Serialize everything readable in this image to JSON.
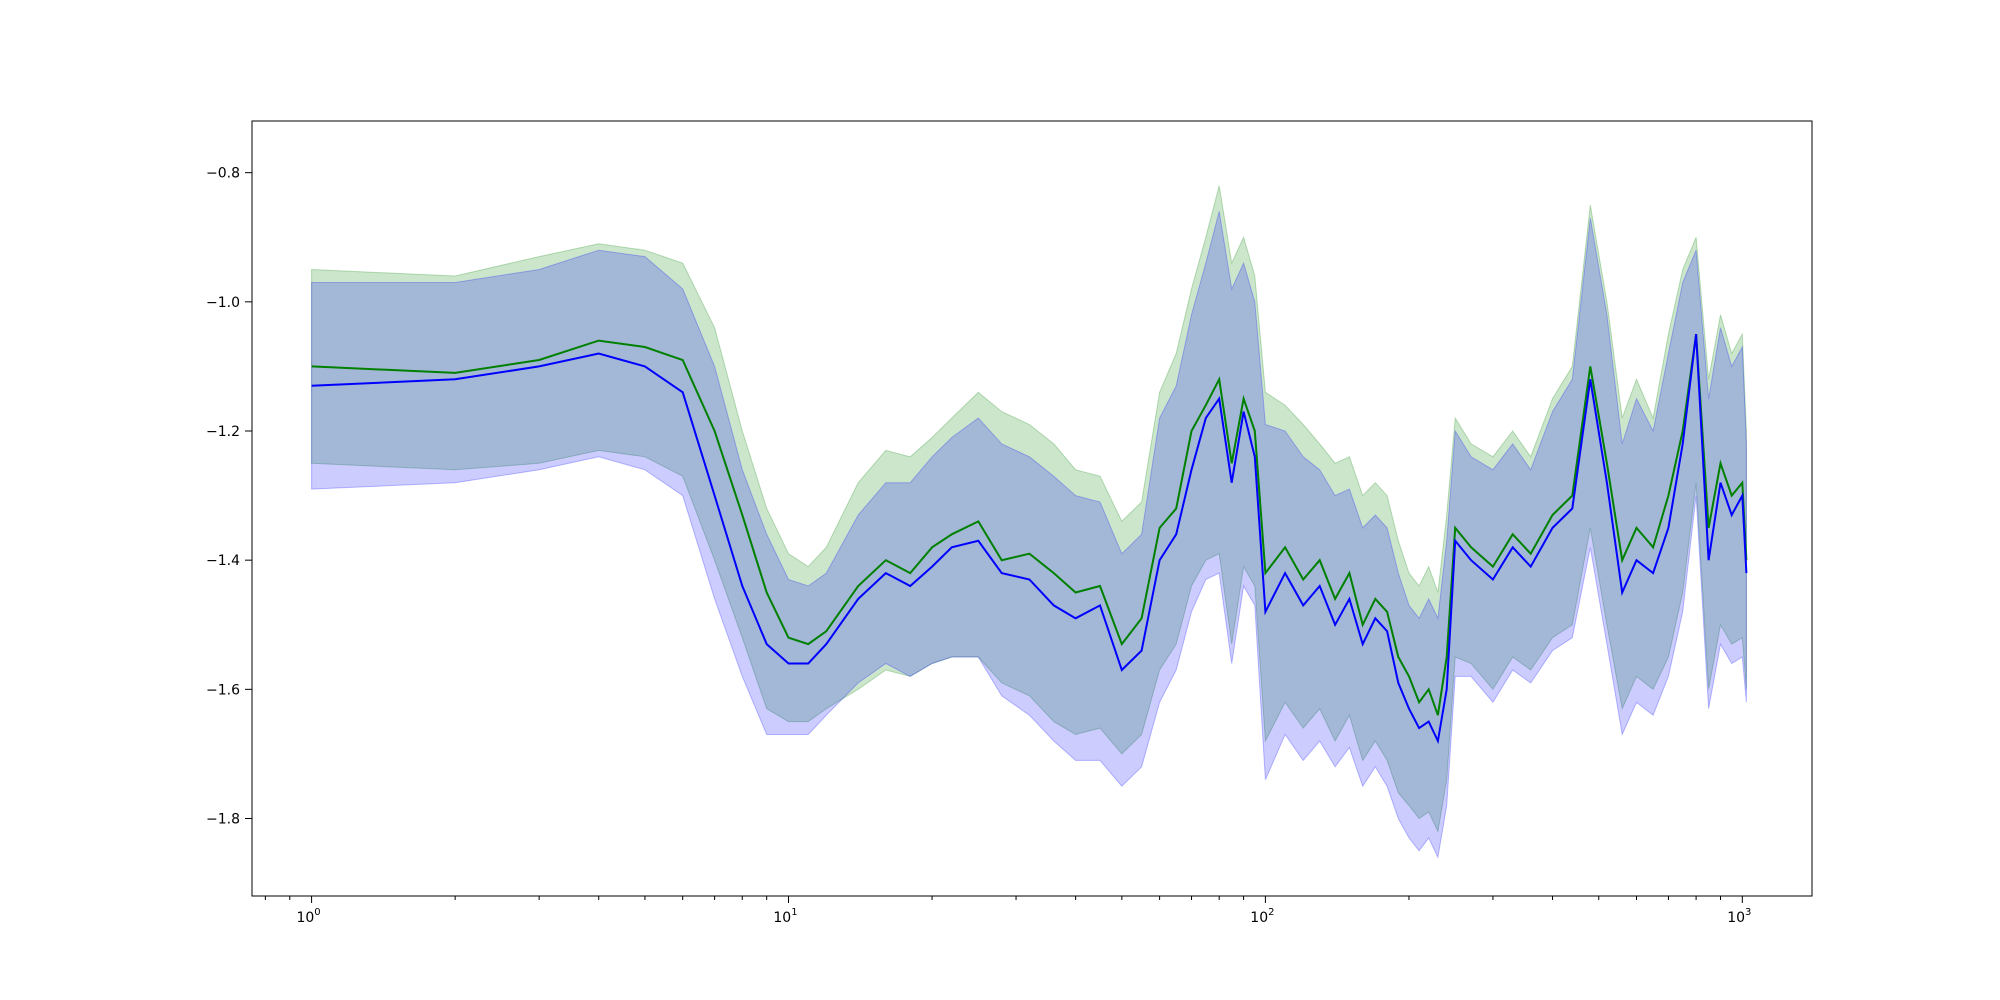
{
  "chart_data": {
    "type": "line",
    "title": "",
    "xlabel": "",
    "ylabel": "",
    "xscale": "log",
    "xlim": [
      0.75,
      1400
    ],
    "ylim": [
      -1.92,
      -0.72
    ],
    "grid": false,
    "legend": "none",
    "x_ticks": [
      {
        "value": 1,
        "base": "10",
        "exp": "0"
      },
      {
        "value": 10,
        "base": "10",
        "exp": "1"
      },
      {
        "value": 100,
        "base": "10",
        "exp": "2"
      },
      {
        "value": 1000,
        "base": "10",
        "exp": "3"
      }
    ],
    "y_ticks": [
      {
        "value": -0.8,
        "label": "−0.8"
      },
      {
        "value": -1.0,
        "label": "−1.0"
      },
      {
        "value": -1.2,
        "label": "−1.2"
      },
      {
        "value": -1.4,
        "label": "−1.4"
      },
      {
        "value": -1.6,
        "label": "−1.6"
      },
      {
        "value": -1.8,
        "label": "−1.8"
      }
    ],
    "series": [
      {
        "color": "#008000",
        "band_color": "#008000",
        "band_opacity": 0.2,
        "x": [
          1,
          2,
          3,
          4,
          5,
          6,
          7,
          8,
          9,
          10,
          11,
          12,
          14,
          16,
          18,
          20,
          22,
          25,
          28,
          32,
          36,
          40,
          45,
          50,
          55,
          60,
          65,
          70,
          75,
          80,
          85,
          90,
          95,
          100,
          110,
          120,
          130,
          140,
          150,
          160,
          170,
          180,
          190,
          200,
          210,
          220,
          230,
          240,
          250,
          270,
          300,
          330,
          360,
          400,
          440,
          480,
          520,
          560,
          600,
          650,
          700,
          750,
          800,
          850,
          900,
          950,
          1000,
          1020
        ],
        "mean": [
          -1.1,
          -1.11,
          -1.09,
          -1.06,
          -1.07,
          -1.09,
          -1.2,
          -1.33,
          -1.45,
          -1.52,
          -1.53,
          -1.51,
          -1.44,
          -1.4,
          -1.42,
          -1.38,
          -1.36,
          -1.34,
          -1.4,
          -1.39,
          -1.42,
          -1.45,
          -1.44,
          -1.53,
          -1.49,
          -1.35,
          -1.32,
          -1.2,
          -1.16,
          -1.12,
          -1.25,
          -1.15,
          -1.2,
          -1.42,
          -1.38,
          -1.43,
          -1.4,
          -1.46,
          -1.42,
          -1.5,
          -1.46,
          -1.48,
          -1.55,
          -1.58,
          -1.62,
          -1.6,
          -1.64,
          -1.55,
          -1.35,
          -1.38,
          -1.41,
          -1.36,
          -1.39,
          -1.33,
          -1.3,
          -1.1,
          -1.25,
          -1.4,
          -1.35,
          -1.38,
          -1.3,
          -1.2,
          -1.05,
          -1.35,
          -1.25,
          -1.3,
          -1.28,
          -1.4
        ],
        "upper": [
          -0.95,
          -0.96,
          -0.93,
          -0.91,
          -0.92,
          -0.94,
          -1.04,
          -1.2,
          -1.32,
          -1.39,
          -1.41,
          -1.38,
          -1.28,
          -1.23,
          -1.24,
          -1.21,
          -1.18,
          -1.14,
          -1.17,
          -1.19,
          -1.22,
          -1.26,
          -1.27,
          -1.34,
          -1.31,
          -1.14,
          -1.08,
          -0.98,
          -0.9,
          -0.82,
          -0.94,
          -0.9,
          -0.96,
          -1.14,
          -1.16,
          -1.19,
          -1.22,
          -1.25,
          -1.24,
          -1.3,
          -1.28,
          -1.3,
          -1.37,
          -1.42,
          -1.44,
          -1.41,
          -1.45,
          -1.33,
          -1.18,
          -1.22,
          -1.24,
          -1.2,
          -1.24,
          -1.15,
          -1.1,
          -0.85,
          -1.0,
          -1.18,
          -1.12,
          -1.18,
          -1.05,
          -0.95,
          -0.9,
          -1.12,
          -1.02,
          -1.08,
          -1.05,
          -1.2
        ],
        "lower": [
          -1.25,
          -1.26,
          -1.25,
          -1.23,
          -1.24,
          -1.27,
          -1.4,
          -1.52,
          -1.63,
          -1.65,
          -1.65,
          -1.63,
          -1.6,
          -1.57,
          -1.58,
          -1.56,
          -1.55,
          -1.55,
          -1.59,
          -1.61,
          -1.65,
          -1.67,
          -1.66,
          -1.7,
          -1.67,
          -1.57,
          -1.53,
          -1.44,
          -1.4,
          -1.39,
          -1.53,
          -1.41,
          -1.44,
          -1.68,
          -1.62,
          -1.66,
          -1.63,
          -1.68,
          -1.64,
          -1.71,
          -1.68,
          -1.71,
          -1.76,
          -1.78,
          -1.8,
          -1.79,
          -1.82,
          -1.74,
          -1.55,
          -1.56,
          -1.6,
          -1.55,
          -1.57,
          -1.52,
          -1.5,
          -1.35,
          -1.5,
          -1.63,
          -1.58,
          -1.6,
          -1.55,
          -1.45,
          -1.28,
          -1.6,
          -1.5,
          -1.53,
          -1.52,
          -1.6
        ]
      },
      {
        "color": "#0000ff",
        "band_color": "#0000ff",
        "band_opacity": 0.2,
        "x": [
          1,
          2,
          3,
          4,
          5,
          6,
          7,
          8,
          9,
          10,
          11,
          12,
          14,
          16,
          18,
          20,
          22,
          25,
          28,
          32,
          36,
          40,
          45,
          50,
          55,
          60,
          65,
          70,
          75,
          80,
          85,
          90,
          95,
          100,
          110,
          120,
          130,
          140,
          150,
          160,
          170,
          180,
          190,
          200,
          210,
          220,
          230,
          240,
          250,
          270,
          300,
          330,
          360,
          400,
          440,
          480,
          520,
          560,
          600,
          650,
          700,
          750,
          800,
          850,
          900,
          950,
          1000,
          1020
        ],
        "mean": [
          -1.13,
          -1.12,
          -1.1,
          -1.08,
          -1.1,
          -1.14,
          -1.3,
          -1.44,
          -1.53,
          -1.56,
          -1.56,
          -1.53,
          -1.46,
          -1.42,
          -1.44,
          -1.41,
          -1.38,
          -1.37,
          -1.42,
          -1.43,
          -1.47,
          -1.49,
          -1.47,
          -1.57,
          -1.54,
          -1.4,
          -1.36,
          -1.26,
          -1.18,
          -1.15,
          -1.28,
          -1.17,
          -1.24,
          -1.48,
          -1.42,
          -1.47,
          -1.44,
          -1.5,
          -1.46,
          -1.53,
          -1.49,
          -1.51,
          -1.59,
          -1.63,
          -1.66,
          -1.65,
          -1.68,
          -1.6,
          -1.37,
          -1.4,
          -1.43,
          -1.38,
          -1.41,
          -1.35,
          -1.32,
          -1.12,
          -1.28,
          -1.45,
          -1.4,
          -1.42,
          -1.35,
          -1.22,
          -1.05,
          -1.4,
          -1.28,
          -1.33,
          -1.3,
          -1.42
        ],
        "upper": [
          -0.97,
          -0.97,
          -0.95,
          -0.92,
          -0.93,
          -0.98,
          -1.1,
          -1.26,
          -1.36,
          -1.43,
          -1.44,
          -1.42,
          -1.33,
          -1.28,
          -1.28,
          -1.24,
          -1.21,
          -1.18,
          -1.22,
          -1.24,
          -1.27,
          -1.3,
          -1.31,
          -1.39,
          -1.36,
          -1.18,
          -1.13,
          -1.02,
          -0.94,
          -0.86,
          -0.98,
          -0.94,
          -1.0,
          -1.19,
          -1.2,
          -1.24,
          -1.26,
          -1.3,
          -1.29,
          -1.35,
          -1.33,
          -1.35,
          -1.42,
          -1.47,
          -1.49,
          -1.46,
          -1.49,
          -1.37,
          -1.2,
          -1.24,
          -1.26,
          -1.22,
          -1.26,
          -1.17,
          -1.12,
          -0.87,
          -1.02,
          -1.22,
          -1.15,
          -1.2,
          -1.08,
          -0.97,
          -0.92,
          -1.15,
          -1.04,
          -1.1,
          -1.07,
          -1.22
        ],
        "lower": [
          -1.29,
          -1.28,
          -1.26,
          -1.24,
          -1.26,
          -1.3,
          -1.46,
          -1.58,
          -1.67,
          -1.67,
          -1.67,
          -1.64,
          -1.59,
          -1.56,
          -1.58,
          -1.56,
          -1.55,
          -1.55,
          -1.61,
          -1.64,
          -1.68,
          -1.71,
          -1.71,
          -1.75,
          -1.72,
          -1.62,
          -1.57,
          -1.48,
          -1.43,
          -1.42,
          -1.56,
          -1.44,
          -1.47,
          -1.74,
          -1.67,
          -1.71,
          -1.68,
          -1.72,
          -1.69,
          -1.75,
          -1.72,
          -1.75,
          -1.8,
          -1.83,
          -1.85,
          -1.83,
          -1.86,
          -1.78,
          -1.58,
          -1.58,
          -1.62,
          -1.57,
          -1.59,
          -1.54,
          -1.52,
          -1.38,
          -1.53,
          -1.67,
          -1.62,
          -1.64,
          -1.58,
          -1.48,
          -1.3,
          -1.63,
          -1.53,
          -1.56,
          -1.55,
          -1.62
        ]
      }
    ]
  }
}
